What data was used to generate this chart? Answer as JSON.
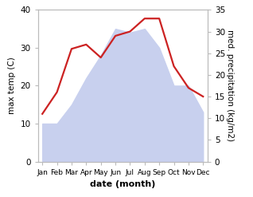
{
  "months": [
    "Jan",
    "Feb",
    "Mar",
    "Apr",
    "May",
    "Jun",
    "Jul",
    "Aug",
    "Sep",
    "Oct",
    "Nov",
    "Dec"
  ],
  "max_temp": [
    10,
    10,
    15,
    22,
    28,
    35,
    34,
    35,
    30,
    20,
    20,
    13
  ],
  "precipitation": [
    11,
    16,
    26,
    27,
    24,
    29,
    30,
    33,
    33,
    22,
    17,
    15
  ],
  "temp_ylim": [
    0,
    40
  ],
  "precip_ylim": [
    0,
    35
  ],
  "temp_fill_color": "#c8d0ee",
  "precip_color": "#cc2222",
  "xlabel": "date (month)",
  "ylabel_left": "max temp (C)",
  "ylabel_right": "med. precipitation (kg/m2)",
  "background_color": "#ffffff",
  "temp_yticks": [
    0,
    10,
    20,
    30,
    40
  ],
  "precip_yticks": [
    0,
    5,
    10,
    15,
    20,
    25,
    30,
    35
  ]
}
